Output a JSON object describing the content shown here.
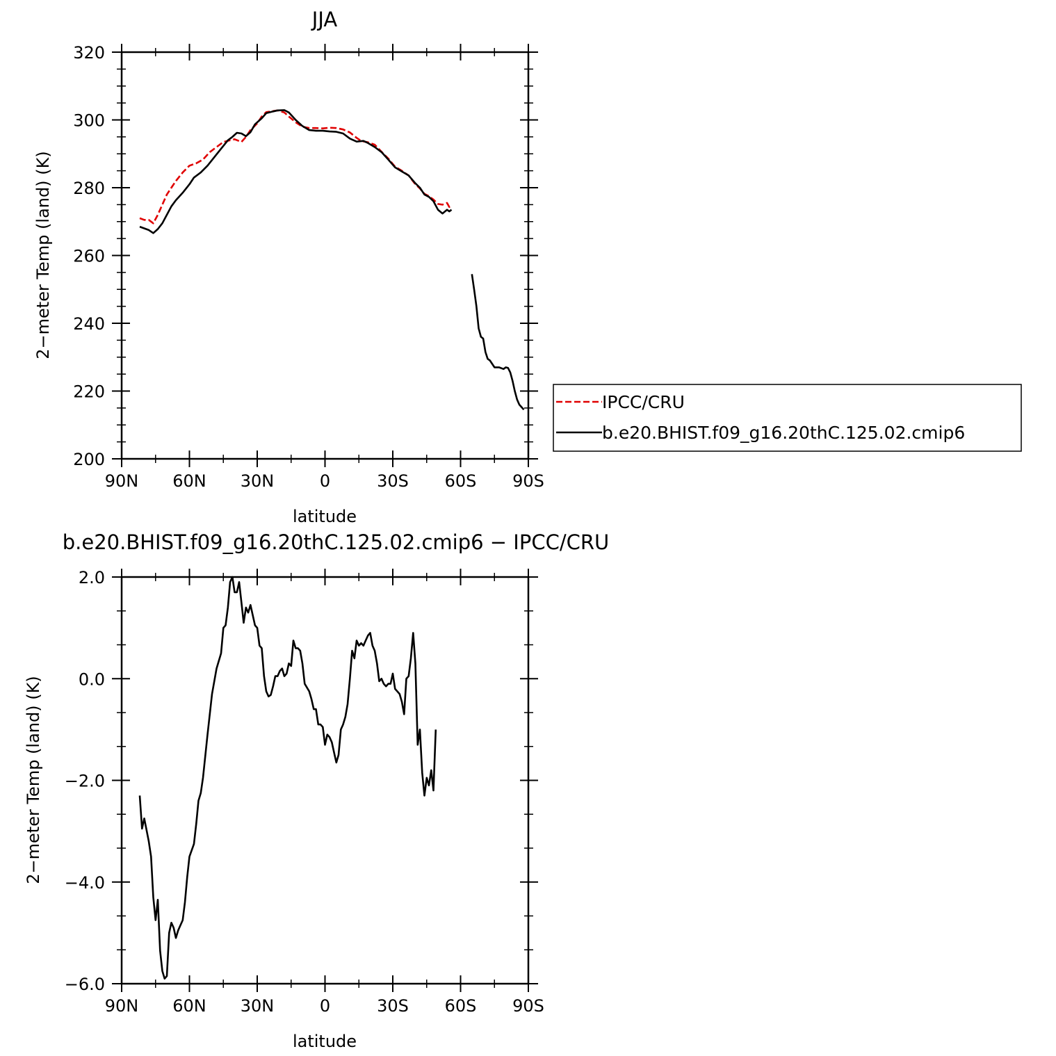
{
  "chart_data": [
    {
      "type": "line",
      "title": "JJA",
      "xlabel": "latitude",
      "ylabel": "2−meter Temp (land) (K)",
      "xlim": [
        90,
        -90
      ],
      "ylim": [
        200,
        320
      ],
      "xticks": [
        90,
        60,
        30,
        0,
        -30,
        -60,
        -90
      ],
      "xtick_labels": [
        "90N",
        "60N",
        "30N",
        "0",
        "30S",
        "60S",
        "90S"
      ],
      "yticks": [
        200,
        220,
        240,
        260,
        280,
        300,
        320
      ],
      "ytick_labels": [
        "200",
        "220",
        "240",
        "260",
        "280",
        "300",
        "320"
      ],
      "legend_position": "right",
      "series": [
        {
          "name": "IPCC/CRU",
          "color": "#e00000",
          "dash": true,
          "points": [
            [
              82,
              271.0
            ],
            [
              80,
              270.5
            ],
            [
              78,
              270.5
            ],
            [
              76,
              269.5
            ],
            [
              74,
              272.0
            ],
            [
              72,
              275.0
            ],
            [
              70,
              278.0
            ],
            [
              68,
              280.0
            ],
            [
              66,
              282.0
            ],
            [
              63,
              284.5
            ],
            [
              60,
              286.5
            ],
            [
              57,
              287.2
            ],
            [
              54,
              288.3
            ],
            [
              51,
              290.5
            ],
            [
              48,
              292.0
            ],
            [
              45,
              293.5
            ],
            [
              42,
              294.0
            ],
            [
              40,
              294.3
            ],
            [
              37,
              293.5
            ],
            [
              35,
              295.0
            ],
            [
              33,
              297.0
            ],
            [
              30,
              299.0
            ],
            [
              28,
              301.0
            ],
            [
              26,
              302.3
            ],
            [
              23,
              302.6
            ],
            [
              21,
              302.8
            ],
            [
              18,
              302.2
            ],
            [
              16,
              301.0
            ],
            [
              13,
              299.3
            ],
            [
              10,
              298.0
            ],
            [
              7,
              297.6
            ],
            [
              4,
              297.6
            ],
            [
              1,
              297.5
            ],
            [
              -2,
              297.7
            ],
            [
              -5,
              297.6
            ],
            [
              -8,
              297.2
            ],
            [
              -11,
              296.3
            ],
            [
              -14,
              294.7
            ],
            [
              -16,
              293.8
            ],
            [
              -19,
              293.4
            ],
            [
              -22,
              292.7
            ],
            [
              -25,
              290.6
            ],
            [
              -28,
              288.6
            ],
            [
              -31,
              286.2
            ],
            [
              -34,
              285.0
            ],
            [
              -37,
              283.6
            ],
            [
              -40,
              281.0
            ],
            [
              -42,
              279.8
            ],
            [
              -44,
              278.2
            ],
            [
              -46,
              277.5
            ],
            [
              -48,
              276.5
            ],
            [
              -50,
              275.2
            ],
            [
              -52,
              275.0
            ],
            [
              -54,
              275.5
            ],
            [
              -55,
              274.3
            ],
            [
              -56,
              275.0
            ]
          ]
        },
        {
          "name": "b.e20.BHIST.f09_g16.20thC.125.02.cmip6",
          "color": "#000000",
          "dash": false,
          "points": [
            [
              82,
              268.5
            ],
            [
              80,
              268.0
            ],
            [
              78,
              267.5
            ],
            [
              76,
              266.6
            ],
            [
              74,
              267.8
            ],
            [
              72,
              269.5
            ],
            [
              70,
              272.0
            ],
            [
              68,
              274.5
            ],
            [
              66,
              276.3
            ],
            [
              63,
              278.5
            ],
            [
              60,
              281.0
            ],
            [
              58,
              283.0
            ],
            [
              55,
              284.5
            ],
            [
              52,
              286.5
            ],
            [
              49,
              289.0
            ],
            [
              46,
              291.5
            ],
            [
              43,
              294.0
            ],
            [
              41,
              295.0
            ],
            [
              39,
              296.2
            ],
            [
              37,
              296.0
            ],
            [
              35,
              295.2
            ],
            [
              33,
              296.4
            ],
            [
              31,
              298.7
            ],
            [
              28,
              300.5
            ],
            [
              26,
              302.0
            ],
            [
              23,
              302.5
            ],
            [
              21,
              302.8
            ],
            [
              18,
              302.9
            ],
            [
              16,
              302.2
            ],
            [
              13,
              300.0
            ],
            [
              10,
              298.2
            ],
            [
              7,
              297.0
            ],
            [
              4,
              296.8
            ],
            [
              1,
              296.8
            ],
            [
              -2,
              296.6
            ],
            [
              -5,
              296.5
            ],
            [
              -8,
              296.0
            ],
            [
              -11,
              294.5
            ],
            [
              -14,
              293.6
            ],
            [
              -17,
              293.8
            ],
            [
              -19,
              293.2
            ],
            [
              -22,
              292.0
            ],
            [
              -25,
              290.5
            ],
            [
              -28,
              288.3
            ],
            [
              -31,
              286.0
            ],
            [
              -34,
              284.8
            ],
            [
              -37,
              283.6
            ],
            [
              -40,
              281.3
            ],
            [
              -42,
              280.0
            ],
            [
              -44,
              278.0
            ],
            [
              -46,
              277.3
            ],
            [
              -48,
              276.0
            ],
            [
              -50,
              273.5
            ],
            [
              -52,
              272.4
            ],
            [
              -54,
              273.5
            ],
            [
              -55,
              273.0
            ],
            [
              -56,
              273.5
            ],
            [
              null,
              null
            ],
            [
              -65,
              254.5
            ],
            [
              -66,
              250.0
            ],
            [
              -67,
              245.0
            ],
            [
              -68,
              238.5
            ],
            [
              -69,
              236.0
            ],
            [
              -70,
              235.5
            ],
            [
              -71,
              231.5
            ],
            [
              -72,
              229.5
            ],
            [
              -73,
              229.0
            ],
            [
              -75,
              227.0
            ],
            [
              -77,
              227.0
            ],
            [
              -79,
              226.5
            ],
            [
              -80,
              227.0
            ],
            [
              -81,
              226.8
            ],
            [
              -82,
              225.5
            ],
            [
              -83,
              223.0
            ],
            [
              -84,
              220.0
            ],
            [
              -85,
              217.5
            ],
            [
              -86,
              216.0
            ],
            [
              -88,
              214.5
            ]
          ]
        }
      ]
    },
    {
      "type": "line",
      "title": "b.e20.BHIST.f09_g16.20thC.125.02.cmip6 − IPCC/CRU",
      "xlabel": "latitude",
      "ylabel": "2−meter Temp (land) (K)",
      "xlim": [
        90,
        -90
      ],
      "ylim": [
        -6,
        2
      ],
      "xticks": [
        90,
        60,
        30,
        0,
        -30,
        -60,
        -90
      ],
      "xtick_labels": [
        "90N",
        "60N",
        "30N",
        "0",
        "30S",
        "60S",
        "90S"
      ],
      "yticks": [
        -6,
        -4,
        -2,
        0,
        2
      ],
      "ytick_labels": [
        "−6.0",
        "−4.0",
        "−2.0",
        "0.0",
        "2.0"
      ],
      "series": [
        {
          "name": "",
          "color": "#000000",
          "dash": false,
          "points": [
            [
              82,
              -2.3
            ],
            [
              81,
              -2.95
            ],
            [
              80,
              -2.75
            ],
            [
              78,
              -3.2
            ],
            [
              77,
              -3.5
            ],
            [
              76,
              -4.3
            ],
            [
              75,
              -4.75
            ],
            [
              74,
              -4.35
            ],
            [
              73,
              -5.35
            ],
            [
              72,
              -5.75
            ],
            [
              71,
              -5.9
            ],
            [
              70,
              -5.85
            ],
            [
              69,
              -5.0
            ],
            [
              68,
              -4.8
            ],
            [
              67,
              -4.9
            ],
            [
              66,
              -5.1
            ],
            [
              65,
              -4.95
            ],
            [
              63,
              -4.75
            ],
            [
              62,
              -4.4
            ],
            [
              61,
              -3.9
            ],
            [
              60,
              -3.5
            ],
            [
              58,
              -3.25
            ],
            [
              57,
              -2.85
            ],
            [
              56,
              -2.4
            ],
            [
              55,
              -2.25
            ],
            [
              54,
              -1.95
            ],
            [
              52,
              -1.1
            ],
            [
              50,
              -0.3
            ],
            [
              48,
              0.2
            ],
            [
              46,
              0.5
            ],
            [
              45,
              1.0
            ],
            [
              44,
              1.05
            ],
            [
              43,
              1.4
            ],
            [
              42,
              1.9
            ],
            [
              41,
              2.0
            ],
            [
              40,
              1.7
            ],
            [
              39,
              1.7
            ],
            [
              38,
              1.9
            ],
            [
              37,
              1.5
            ],
            [
              36,
              1.1
            ],
            [
              35,
              1.4
            ],
            [
              34,
              1.3
            ],
            [
              33,
              1.45
            ],
            [
              31,
              1.05
            ],
            [
              30,
              1.0
            ],
            [
              29,
              0.65
            ],
            [
              28,
              0.6
            ],
            [
              27,
              0.05
            ],
            [
              26,
              -0.25
            ],
            [
              25,
              -0.35
            ],
            [
              24,
              -0.32
            ],
            [
              23,
              -0.15
            ],
            [
              22,
              0.05
            ],
            [
              21,
              0.05
            ],
            [
              20,
              0.15
            ],
            [
              19,
              0.2
            ],
            [
              18,
              0.05
            ],
            [
              17,
              0.1
            ],
            [
              16,
              0.3
            ],
            [
              15,
              0.25
            ],
            [
              14,
              0.75
            ],
            [
              13,
              0.6
            ],
            [
              12,
              0.6
            ],
            [
              11,
              0.55
            ],
            [
              10,
              0.3
            ],
            [
              9,
              -0.1
            ],
            [
              7,
              -0.25
            ],
            [
              6,
              -0.4
            ],
            [
              5,
              -0.6
            ],
            [
              4,
              -0.6
            ],
            [
              3,
              -0.9
            ],
            [
              2,
              -0.9
            ],
            [
              1,
              -0.95
            ],
            [
              0,
              -1.3
            ],
            [
              -1,
              -1.1
            ],
            [
              -2,
              -1.15
            ],
            [
              -3,
              -1.25
            ],
            [
              -4,
              -1.45
            ],
            [
              -5,
              -1.65
            ],
            [
              -6,
              -1.5
            ],
            [
              -7,
              -1.0
            ],
            [
              -8,
              -0.9
            ],
            [
              -9,
              -0.75
            ],
            [
              -10,
              -0.5
            ],
            [
              -11,
              0.0
            ],
            [
              -12,
              0.55
            ],
            [
              -13,
              0.4
            ],
            [
              -14,
              0.75
            ],
            [
              -15,
              0.65
            ],
            [
              -16,
              0.7
            ],
            [
              -17,
              0.65
            ],
            [
              -18,
              0.75
            ],
            [
              -19,
              0.85
            ],
            [
              -20,
              0.9
            ],
            [
              -21,
              0.65
            ],
            [
              -22,
              0.55
            ],
            [
              -23,
              0.3
            ],
            [
              -24,
              -0.05
            ],
            [
              -25,
              0.0
            ],
            [
              -26,
              -0.1
            ],
            [
              -27,
              -0.15
            ],
            [
              -28,
              -0.1
            ],
            [
              -29,
              -0.1
            ],
            [
              -30,
              0.1
            ],
            [
              -31,
              -0.2
            ],
            [
              -32,
              -0.25
            ],
            [
              -33,
              -0.3
            ],
            [
              -34,
              -0.45
            ],
            [
              -35,
              -0.7
            ],
            [
              -36,
              0.0
            ],
            [
              -37,
              0.05
            ],
            [
              -38,
              0.4
            ],
            [
              -39,
              0.9
            ],
            [
              -40,
              0.3
            ],
            [
              -41,
              -1.3
            ],
            [
              -42,
              -1.0
            ],
            [
              -43,
              -1.85
            ],
            [
              -44,
              -2.3
            ],
            [
              -45,
              -1.95
            ],
            [
              -46,
              -2.1
            ],
            [
              -47,
              -1.8
            ],
            [
              -48,
              -2.2
            ],
            [
              -49,
              -1.0
            ]
          ]
        }
      ]
    }
  ]
}
